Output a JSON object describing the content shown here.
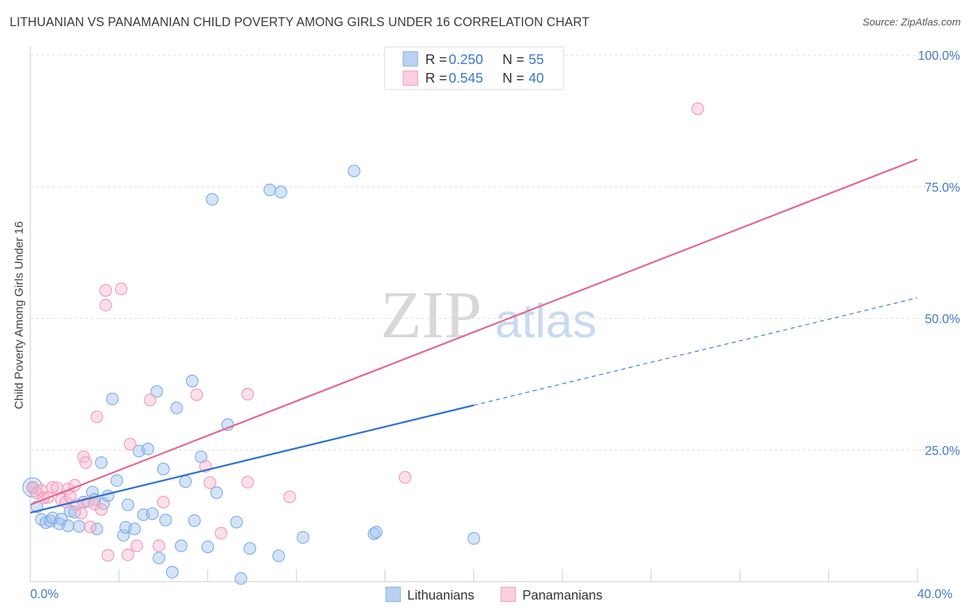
{
  "title": "LITHUANIAN VS PANAMANIAN CHILD POVERTY AMONG GIRLS UNDER 16 CORRELATION CHART",
  "source": "Source: ZipAtlas.com",
  "watermark": {
    "zip": "ZIP",
    "atlas": "atlas"
  },
  "legend": {
    "r_label": "R =",
    "n_label": "N =",
    "rows": [
      {
        "r": "0.250",
        "n": "55",
        "color": "#a9c8f0"
      },
      {
        "r": "0.545",
        "n": "40",
        "color": "#f6bfd2"
      }
    ]
  },
  "bottom_legend": [
    "Lithuanians",
    "Panamanians"
  ],
  "chart_data": {
    "type": "scatter",
    "title": "LITHUANIAN VS PANAMANIAN CHILD POVERTY AMONG GIRLS UNDER 16 CORRELATION CHART",
    "xlabel": "",
    "ylabel": "Child Poverty Among Girls Under 16",
    "xlim": [
      0,
      40
    ],
    "ylim": [
      0,
      100
    ],
    "x_tick_labels": [
      "0.0%",
      "40.0%"
    ],
    "y_tick_labels": [
      "100.0%",
      "75.0%",
      "50.0%",
      "25.0%"
    ],
    "y_ticks": [
      100,
      75,
      50,
      25
    ],
    "grid": true,
    "legend_position": "top-center",
    "colors": {
      "Lithuanians": "#7aa8e6",
      "Panamanians": "#f096b6",
      "lith_line": "#2f72d0",
      "pan_line": "#e06a96"
    },
    "series": [
      {
        "name": "Lithuanians",
        "points": [
          [
            0.1,
            17.9
          ],
          [
            0.3,
            14.2
          ],
          [
            0.5,
            11.8
          ],
          [
            0.7,
            11.2
          ],
          [
            0.9,
            11.5
          ],
          [
            1.0,
            12.1
          ],
          [
            1.3,
            11.0
          ],
          [
            1.4,
            11.9
          ],
          [
            1.7,
            10.6
          ],
          [
            1.8,
            13.4
          ],
          [
            2.0,
            13.2
          ],
          [
            2.2,
            10.5
          ],
          [
            2.4,
            15.1
          ],
          [
            2.8,
            17.0
          ],
          [
            2.9,
            15.6
          ],
          [
            3.0,
            10.0
          ],
          [
            3.2,
            22.6
          ],
          [
            3.3,
            14.8
          ],
          [
            3.5,
            16.3
          ],
          [
            3.7,
            34.7
          ],
          [
            3.9,
            19.2
          ],
          [
            4.2,
            8.8
          ],
          [
            4.3,
            10.3
          ],
          [
            4.4,
            14.6
          ],
          [
            4.7,
            10.0
          ],
          [
            4.9,
            24.8
          ],
          [
            5.1,
            12.7
          ],
          [
            5.3,
            25.2
          ],
          [
            5.5,
            12.9
          ],
          [
            5.7,
            36.1
          ],
          [
            5.8,
            4.5
          ],
          [
            6.0,
            21.4
          ],
          [
            6.1,
            11.7
          ],
          [
            6.4,
            1.8
          ],
          [
            6.6,
            33.0
          ],
          [
            6.8,
            6.8
          ],
          [
            7.0,
            19.0
          ],
          [
            7.3,
            38.1
          ],
          [
            7.4,
            11.6
          ],
          [
            7.7,
            23.7
          ],
          [
            8.0,
            6.6
          ],
          [
            8.2,
            72.6
          ],
          [
            8.4,
            16.9
          ],
          [
            8.9,
            29.8
          ],
          [
            9.3,
            11.3
          ],
          [
            9.5,
            0.6
          ],
          [
            9.9,
            6.3
          ],
          [
            10.8,
            74.4
          ],
          [
            11.2,
            4.9
          ],
          [
            11.3,
            74.0
          ],
          [
            12.3,
            8.4
          ],
          [
            14.6,
            78.0
          ],
          [
            15.5,
            9.1
          ],
          [
            15.6,
            9.4
          ],
          [
            20.0,
            8.2
          ]
        ],
        "trend": {
          "x": [
            0,
            20,
            40
          ],
          "y": [
            13.1,
            33.5,
            53.9
          ],
          "solid_until_x": 20
        }
      },
      {
        "name": "Panamanians",
        "points": [
          [
            0.1,
            17.8
          ],
          [
            0.3,
            16.8
          ],
          [
            0.5,
            17.3
          ],
          [
            0.6,
            15.9
          ],
          [
            0.8,
            16.0
          ],
          [
            1.0,
            17.9
          ],
          [
            1.2,
            17.8
          ],
          [
            1.4,
            15.6
          ],
          [
            1.6,
            15.1
          ],
          [
            1.7,
            17.6
          ],
          [
            1.8,
            16.2
          ],
          [
            2.0,
            18.3
          ],
          [
            2.1,
            14.6
          ],
          [
            2.3,
            13.0
          ],
          [
            2.4,
            23.7
          ],
          [
            2.5,
            22.6
          ],
          [
            2.6,
            15.2
          ],
          [
            2.7,
            10.4
          ],
          [
            2.9,
            14.7
          ],
          [
            3.0,
            31.3
          ],
          [
            3.2,
            13.7
          ],
          [
            3.4,
            55.3
          ],
          [
            3.4,
            52.5
          ],
          [
            3.5,
            5.0
          ],
          [
            4.1,
            55.6
          ],
          [
            4.4,
            5.1
          ],
          [
            4.5,
            26.1
          ],
          [
            4.8,
            6.8
          ],
          [
            5.4,
            34.5
          ],
          [
            5.8,
            6.8
          ],
          [
            6.0,
            15.1
          ],
          [
            7.5,
            35.5
          ],
          [
            7.9,
            21.9
          ],
          [
            8.1,
            18.8
          ],
          [
            8.6,
            9.2
          ],
          [
            9.8,
            35.6
          ],
          [
            9.8,
            18.9
          ],
          [
            11.7,
            16.1
          ],
          [
            16.9,
            19.8
          ],
          [
            30.1,
            89.8
          ]
        ],
        "trend": {
          "x": [
            0,
            40
          ],
          "y": [
            14.6,
            80.2
          ]
        }
      }
    ]
  }
}
